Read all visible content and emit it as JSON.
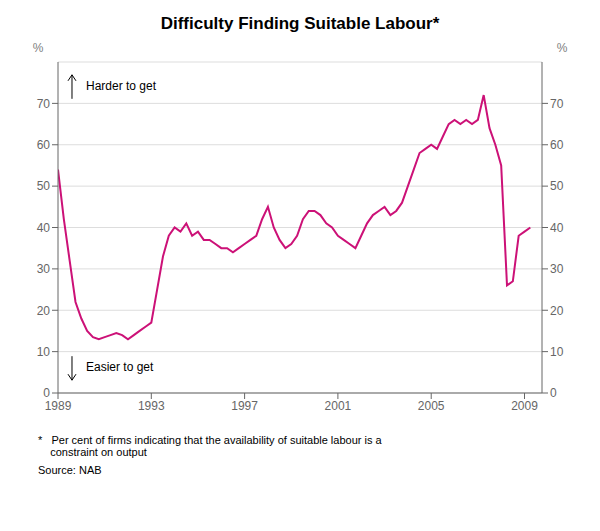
{
  "chart_data": {
    "type": "line",
    "title": "Difficulty Finding Suitable Labour*",
    "color": "#cc1177",
    "grid": true,
    "ylabel": "%",
    "y2label": "%",
    "xlim": [
      1989,
      2009.75
    ],
    "xticks": [
      1989,
      1993,
      1997,
      2001,
      2005,
      2009
    ],
    "ylim": [
      0,
      80
    ],
    "yticks": [
      0,
      10,
      20,
      30,
      40,
      50,
      60,
      70
    ],
    "y2lim": [
      0,
      80
    ],
    "y2ticks": [
      0,
      10,
      20,
      30,
      40,
      50,
      60,
      70
    ],
    "x": [
      1989.0,
      1989.25,
      1989.5,
      1989.75,
      1990.0,
      1990.25,
      1990.5,
      1990.75,
      1991.0,
      1991.25,
      1991.5,
      1991.75,
      1992.0,
      1992.25,
      1992.5,
      1992.75,
      1993.0,
      1993.25,
      1993.5,
      1993.75,
      1994.0,
      1994.25,
      1994.5,
      1994.75,
      1995.0,
      1995.25,
      1995.5,
      1995.75,
      1996.0,
      1996.25,
      1996.5,
      1996.75,
      1997.0,
      1997.25,
      1997.5,
      1997.75,
      1998.0,
      1998.25,
      1998.5,
      1998.75,
      1999.0,
      1999.25,
      1999.5,
      1999.75,
      2000.0,
      2000.25,
      2000.5,
      2000.75,
      2001.0,
      2001.25,
      2001.5,
      2001.75,
      2002.0,
      2002.25,
      2002.5,
      2002.75,
      2003.0,
      2003.25,
      2003.5,
      2003.75,
      2004.0,
      2004.25,
      2004.5,
      2004.75,
      2005.0,
      2005.25,
      2005.5,
      2005.75,
      2006.0,
      2006.25,
      2006.5,
      2006.75,
      2007.0,
      2007.25,
      2007.5,
      2007.75,
      2008.0,
      2008.25,
      2008.5,
      2008.75,
      2009.0,
      2009.25
    ],
    "values": [
      54,
      42,
      32,
      22,
      18,
      15,
      13.5,
      13,
      13.5,
      14,
      14.5,
      14,
      13,
      14,
      15,
      16,
      17,
      25,
      33,
      38,
      40,
      39,
      41,
      38,
      39,
      37,
      37,
      36,
      35,
      35,
      34,
      35,
      36,
      37,
      38,
      42,
      45,
      40,
      37,
      35,
      36,
      38,
      42,
      44,
      44,
      43,
      41,
      40,
      38,
      37,
      36,
      35,
      38,
      41,
      43,
      44,
      45,
      43,
      44,
      46,
      50,
      54,
      58,
      59,
      60,
      59,
      62,
      65,
      66,
      65,
      66,
      65,
      66,
      72,
      64,
      60,
      55,
      26,
      27,
      38,
      39,
      40
    ],
    "annotations": [
      {
        "text": "Harder to get",
        "x": 1990.2,
        "y": 74
      },
      {
        "text": "Easier to get",
        "x": 1990.2,
        "y": 6
      }
    ],
    "footnote": [
      "*   Per cent of firms indicating that the availability of suitable labour is a",
      "    constraint on output"
    ],
    "source": "Source: NAB"
  }
}
